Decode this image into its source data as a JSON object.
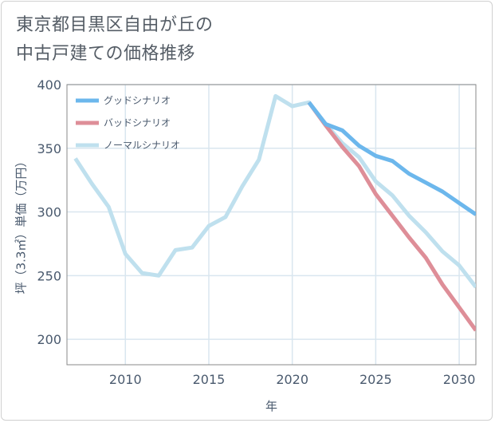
{
  "chart_data": {
    "type": "line",
    "title": [
      "東京都目黒区自由が丘の",
      "中古戸建ての価格推移"
    ],
    "xlabel": "年",
    "ylabel": "坪（3.3㎡）単価（万円）",
    "xlim": [
      2006.5,
      2031
    ],
    "ylim": [
      180,
      400
    ],
    "x_ticks": [
      2010,
      2015,
      2020,
      2025,
      2030
    ],
    "y_ticks": [
      200,
      250,
      300,
      350,
      400
    ],
    "grid": true,
    "legend_position": "top-left",
    "series": [
      {
        "name": "グッドシナリオ",
        "color": "#6cb7ec",
        "x": [
          2021,
          2022,
          2023,
          2024,
          2025,
          2026,
          2027,
          2028,
          2029,
          2030,
          2031
        ],
        "y": [
          386,
          369,
          364,
          352,
          344,
          340,
          330,
          323,
          316,
          307,
          298
        ]
      },
      {
        "name": "バッドシナリオ",
        "color": "#de8e98",
        "x": [
          2021,
          2022,
          2023,
          2024,
          2025,
          2026,
          2027,
          2028,
          2029,
          2030,
          2031
        ],
        "y": [
          386,
          368,
          351,
          336,
          314,
          297,
          280,
          264,
          243,
          225,
          207
        ]
      },
      {
        "name": "ノーマルシナリオ",
        "color": "#bfe0ee",
        "x": [
          2007,
          2008,
          2009,
          2010,
          2011,
          2012,
          2013,
          2014,
          2015,
          2016,
          2017,
          2018,
          2019,
          2020,
          2021,
          2022,
          2023,
          2024,
          2025,
          2026,
          2027,
          2028,
          2029,
          2030,
          2031
        ],
        "y": [
          342,
          322,
          304,
          267,
          252,
          250,
          270,
          272,
          289,
          296,
          320,
          341,
          391,
          383,
          386,
          369,
          354,
          343,
          324,
          313,
          297,
          284,
          269,
          258,
          241
        ]
      }
    ]
  }
}
